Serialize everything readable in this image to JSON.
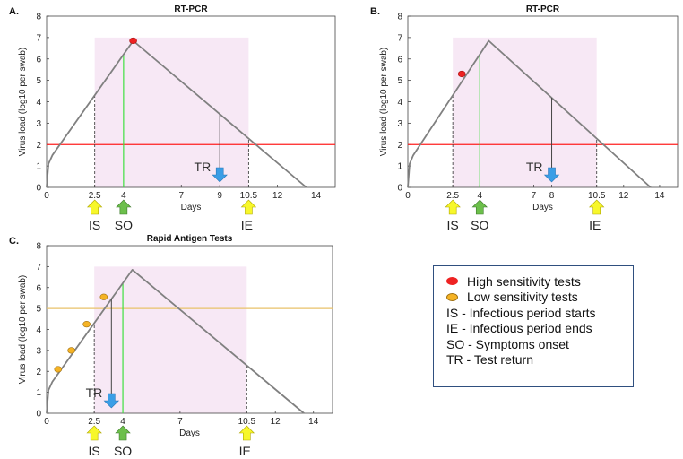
{
  "colors": {
    "curve": "#808080",
    "infectious_shade": "#f7e8f5",
    "threshold_pcr": "#ff2020",
    "threshold_rat": "#e8c26a",
    "symptom_line": "#40e040",
    "high_marker": "#ee2222",
    "low_marker": "#f5b325",
    "arrow_yellow": "#f7f72a",
    "arrow_green": "#6cbf4b",
    "arrow_blue": "#3a9ee6",
    "legend_border": "#2f4f7f"
  },
  "chart_data": [
    {
      "panel_label": "A.",
      "type": "line",
      "title": "RT-PCR",
      "xlabel": "Days",
      "ylabel": "Virus load (log10 per swab)",
      "xlim": [
        0,
        15
      ],
      "ylim": [
        0,
        8
      ],
      "xticks": [
        0,
        2.5,
        4,
        7,
        9,
        10.5,
        12,
        14
      ],
      "yticks": [
        0,
        1,
        2,
        3,
        4,
        5,
        6,
        7,
        8
      ],
      "curve": {
        "x": [
          0,
          0.1,
          0.3,
          4.5,
          13.5
        ],
        "y": [
          0,
          1.1,
          1.5,
          6.85,
          0
        ]
      },
      "shaded_interval": {
        "x": [
          2.5,
          10.5
        ],
        "y": [
          0,
          7
        ]
      },
      "threshold": 2,
      "threshold_color": "threshold_pcr",
      "symptom_onset_day": 4,
      "infectious_start_day": 2.5,
      "infectious_end_day": 10.5,
      "markers": [
        {
          "x": 4.5,
          "y": 6.85,
          "sensitivity": "high"
        }
      ],
      "test_return": {
        "day": 9,
        "label": "TR"
      },
      "arrow_labels": {
        "IS": "IS",
        "SO": "SO",
        "IE": "IE"
      }
    },
    {
      "panel_label": "B.",
      "type": "line",
      "title": "RT-PCR",
      "xlabel": "Days",
      "ylabel": "Virus load (log10 per swab)",
      "xlim": [
        0,
        15
      ],
      "ylim": [
        0,
        8
      ],
      "xticks": [
        0,
        2.5,
        4,
        7,
        8,
        10.5,
        12,
        14
      ],
      "yticks": [
        0,
        1,
        2,
        3,
        4,
        5,
        6,
        7,
        8
      ],
      "curve": {
        "x": [
          0,
          0.1,
          0.3,
          4.5,
          13.5
        ],
        "y": [
          0,
          1.1,
          1.5,
          6.85,
          0
        ]
      },
      "shaded_interval": {
        "x": [
          2.5,
          10.5
        ],
        "y": [
          0,
          7
        ]
      },
      "threshold": 2,
      "threshold_color": "threshold_pcr",
      "symptom_onset_day": 4,
      "infectious_start_day": 2.5,
      "infectious_end_day": 10.5,
      "markers": [
        {
          "x": 3,
          "y": 5.3,
          "sensitivity": "high"
        }
      ],
      "test_return": {
        "day": 8,
        "label": "TR"
      },
      "arrow_labels": {
        "IS": "IS",
        "SO": "SO",
        "IE": "IE"
      }
    },
    {
      "panel_label": "C.",
      "type": "line",
      "title": "Rapid Antigen Tests",
      "xlabel": "Days",
      "ylabel": "Virus load (log10 per swab)",
      "xlim": [
        0,
        15
      ],
      "ylim": [
        0,
        8
      ],
      "xticks": [
        0,
        2.5,
        4,
        7,
        10.5,
        12,
        14
      ],
      "yticks": [
        0,
        1,
        2,
        3,
        4,
        5,
        6,
        7,
        8
      ],
      "curve": {
        "x": [
          0,
          0.1,
          0.3,
          4.5,
          13.5
        ],
        "y": [
          0,
          1.1,
          1.5,
          6.85,
          0
        ]
      },
      "shaded_interval": {
        "x": [
          2.5,
          10.5
        ],
        "y": [
          0,
          7
        ]
      },
      "threshold": 5,
      "threshold_color": "threshold_rat",
      "symptom_onset_day": 4,
      "infectious_start_day": 2.5,
      "infectious_end_day": 10.5,
      "markers": [
        {
          "x": 0.6,
          "y": 2.1,
          "sensitivity": "low"
        },
        {
          "x": 1.3,
          "y": 3.0,
          "sensitivity": "low"
        },
        {
          "x": 2.1,
          "y": 4.25,
          "sensitivity": "low"
        },
        {
          "x": 3.0,
          "y": 5.55,
          "sensitivity": "low"
        }
      ],
      "test_return": {
        "day": 3.4,
        "label": "TR"
      },
      "arrow_labels": {
        "IS": "IS",
        "SO": "SO",
        "IE": "IE"
      }
    }
  ],
  "legend": {
    "items": [
      {
        "marker": "high",
        "label": "High sensitivity tests"
      },
      {
        "marker": "low",
        "label": "Low sensitivity tests"
      },
      {
        "marker": "none",
        "label": "IS -  Infectious period starts"
      },
      {
        "marker": "none",
        "label": "IE -  Infectious period ends"
      },
      {
        "marker": "none",
        "label": "SO - Symptoms onset"
      },
      {
        "marker": "none",
        "label": "TR - Test return"
      }
    ]
  }
}
